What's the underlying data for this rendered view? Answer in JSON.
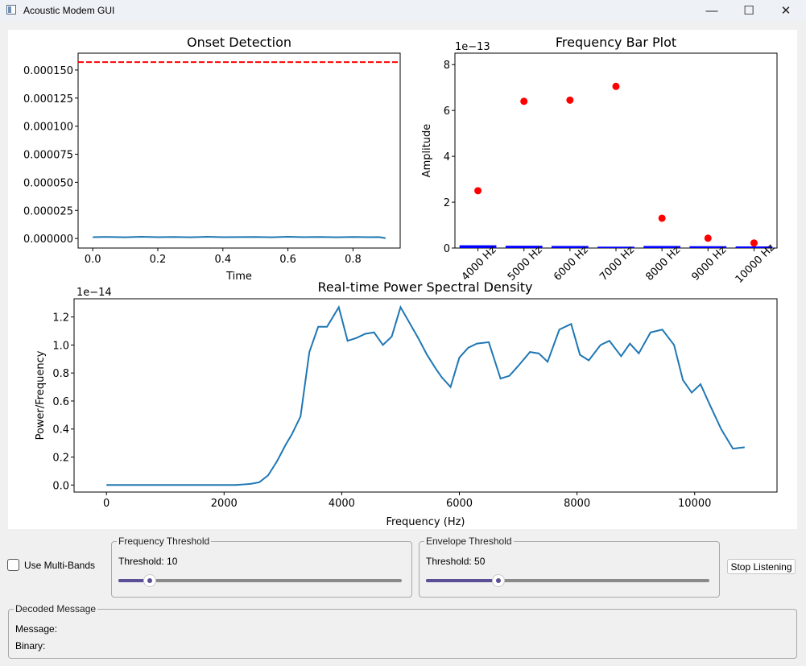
{
  "window": {
    "title": "Acoustic Modem GUI",
    "icon": "app-window-icon",
    "controls": {
      "minimize": "—",
      "maximize": "☐",
      "close": "✕"
    }
  },
  "chart_data": [
    {
      "type": "line",
      "title": "Onset Detection",
      "xlabel": "Time",
      "ylabel": "",
      "xlim": [
        -0.045,
        0.945
      ],
      "ylim": [
        -8.5e-06,
        0.000165
      ],
      "xticks": [
        0.0,
        0.2,
        0.4,
        0.6,
        0.8
      ],
      "xtick_labels": [
        "0.0",
        "0.2",
        "0.4",
        "0.6",
        "0.8"
      ],
      "yticks": [
        0.0,
        2.5e-05,
        5e-05,
        7.5e-05,
        0.0001,
        0.000125,
        0.00015
      ],
      "ytick_labels": [
        "0.000000",
        "0.000025",
        "0.000050",
        "0.000075",
        "0.000100",
        "0.000125",
        "0.000150"
      ],
      "threshold": 0.000157,
      "series": [
        {
          "color": "#1f77b4",
          "x": [
            0.0,
            0.05,
            0.1,
            0.15,
            0.2,
            0.25,
            0.3,
            0.35,
            0.4,
            0.45,
            0.5,
            0.55,
            0.6,
            0.65,
            0.7,
            0.75,
            0.8,
            0.85,
            0.88,
            0.9
          ],
          "y": [
            1.2e-06,
            1.4e-06,
            1.1e-06,
            1.5e-06,
            1.2e-06,
            1.4e-06,
            1.1e-06,
            1.5e-06,
            1.2e-06,
            1.3e-06,
            1.4e-06,
            1.1e-06,
            1.5e-06,
            1.2e-06,
            1.4e-06,
            1.1e-06,
            1.4e-06,
            1.2e-06,
            1.3e-06,
            3e-07
          ]
        }
      ]
    },
    {
      "type": "bar",
      "title": "Frequency Bar Plot",
      "ylabel": "Amplitude",
      "xlabel": "",
      "y_offset_text": "1e−13",
      "categories": [
        "4000 Hz",
        "5000 Hz",
        "6000 Hz",
        "7000 Hz",
        "8000 Hz",
        "9000 Hz",
        "10000 Hz"
      ],
      "bar_values": [
        0.12,
        0.1,
        0.09,
        0.06,
        0.09,
        0.08,
        0.07
      ],
      "point_values": [
        2.5,
        6.4,
        6.45,
        7.05,
        1.3,
        0.43,
        0.22
      ],
      "bar_color": "#0000ff",
      "point_color": "#ff0000",
      "ylim": [
        0,
        8.5
      ],
      "yticks": [
        0,
        2,
        4,
        6,
        8
      ],
      "ytick_labels": [
        "0",
        "2",
        "4",
        "6",
        "8"
      ]
    },
    {
      "type": "line",
      "title": "Real-time Power Spectral Density",
      "xlabel": "Frequency (Hz)",
      "ylabel": "Power/Frequency",
      "y_offset_text": "1e−14",
      "xlim": [
        -550,
        11400
      ],
      "ylim": [
        -0.05,
        1.33
      ],
      "xticks": [
        0,
        2000,
        4000,
        6000,
        8000,
        10000
      ],
      "xtick_labels": [
        "0",
        "2000",
        "4000",
        "6000",
        "8000",
        "10000"
      ],
      "yticks": [
        0.0,
        0.2,
        0.4,
        0.6,
        0.8,
        1.0,
        1.2
      ],
      "ytick_labels": [
        "0.0",
        "0.2",
        "0.4",
        "0.6",
        "0.8",
        "1.0",
        "1.2"
      ],
      "series": [
        {
          "color": "#1f77b4",
          "x": [
            0,
            200,
            400,
            600,
            800,
            1000,
            1200,
            1400,
            1600,
            1800,
            2000,
            2200,
            2350,
            2450,
            2600,
            2750,
            2900,
            3050,
            3150,
            3300,
            3450,
            3600,
            3750,
            3950,
            4100,
            4250,
            4400,
            4550,
            4700,
            4850,
            5000,
            5150,
            5300,
            5450,
            5600,
            5700,
            5850,
            6000,
            6150,
            6300,
            6500,
            6700,
            6850,
            7000,
            7200,
            7350,
            7500,
            7700,
            7900,
            8050,
            8200,
            8400,
            8550,
            8750,
            8900,
            9050,
            9250,
            9450,
            9650,
            9800,
            9950,
            10100,
            10250,
            10450,
            10650,
            10850
          ],
          "y": [
            0.0,
            0.0,
            0.0,
            0.0,
            0.0,
            0.0,
            0.0,
            0.0,
            0.0,
            0.0,
            0.0,
            0.0,
            0.005,
            0.008,
            0.02,
            0.07,
            0.17,
            0.29,
            0.36,
            0.49,
            0.95,
            1.13,
            1.13,
            1.27,
            1.03,
            1.05,
            1.08,
            1.09,
            1.0,
            1.06,
            1.27,
            1.16,
            1.05,
            0.93,
            0.83,
            0.77,
            0.7,
            0.91,
            0.98,
            1.01,
            1.02,
            0.76,
            0.78,
            0.85,
            0.95,
            0.94,
            0.88,
            1.11,
            1.15,
            0.93,
            0.89,
            1.0,
            1.03,
            0.92,
            1.01,
            0.94,
            1.09,
            1.11,
            1.0,
            0.75,
            0.66,
            0.72,
            0.58,
            0.4,
            0.26,
            0.27
          ]
        }
      ]
    }
  ],
  "controls": {
    "multi_bands": {
      "label": "Use Multi-Bands",
      "checked": false
    },
    "frequency_threshold": {
      "title": "Frequency Threshold",
      "label": "Threshold: 10",
      "value": 10,
      "fraction": 0.11
    },
    "envelope_threshold": {
      "title": "Envelope Threshold",
      "label": "Threshold: 50",
      "value": 50,
      "fraction": 0.255
    },
    "stop_button": "Stop Listening"
  },
  "decoded": {
    "title": "Decoded Message",
    "message_label": "Message:",
    "message_value": "",
    "binary_label": "Binary:",
    "binary_value": ""
  }
}
